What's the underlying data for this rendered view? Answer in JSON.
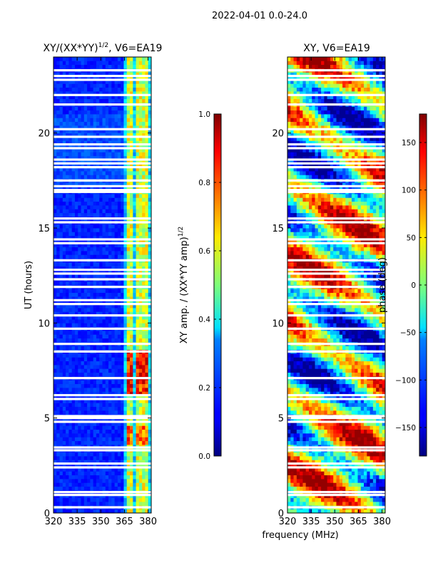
{
  "figure": {
    "suptitle": "2022-04-01 0.0-24.0",
    "xlabel": "frequency (MHz)"
  },
  "chart_data": [
    {
      "type": "heatmap",
      "title": "XY/(XX*YY)^(1/2), V6=EA19",
      "title_main": "XY/(XX*YY)",
      "title_exp": "1/2",
      "title_tail": ", V6=EA19",
      "xlabel": "",
      "ylabel": "UT (hours)",
      "xlim": [
        320,
        382
      ],
      "ylim": [
        0,
        24
      ],
      "xticks": [
        "320",
        "335",
        "350",
        "365",
        "380"
      ],
      "yticks": [
        "0",
        "5",
        "10",
        "15",
        "20"
      ],
      "xtick_values": [
        320,
        335,
        350,
        365,
        380
      ],
      "ytick_values": [
        0,
        5,
        10,
        15,
        20
      ],
      "colorbar": {
        "label": "XY amp. / (XX*YY amp)^(1/2)",
        "label_main": "XY amp. / (XX*YY amp)",
        "label_exp": "1/2",
        "range": [
          0,
          1
        ],
        "ticks": [
          "0.0",
          "0.2",
          "0.4",
          "0.6",
          "0.8",
          "1.0"
        ],
        "tick_values": [
          0,
          0.2,
          0.4,
          0.6,
          0.8,
          1.0
        ]
      }
    },
    {
      "type": "heatmap",
      "title": "XY, V6=EA19",
      "xlabel": "frequency (MHz)",
      "ylabel": "",
      "xlim": [
        320,
        382
      ],
      "ylim": [
        0,
        24
      ],
      "xticks": [
        "320",
        "335",
        "350",
        "365",
        "380"
      ],
      "yticks": [
        "0",
        "5",
        "10",
        "15",
        "20"
      ],
      "xtick_values": [
        320,
        335,
        350,
        365,
        380
      ],
      "ytick_values": [
        0,
        5,
        10,
        15,
        20
      ],
      "colorbar": {
        "label": "phase (deg)",
        "range": [
          -180,
          180
        ],
        "ticks": [
          "−150",
          "−100",
          "−50",
          "0",
          "50",
          "100",
          "150"
        ],
        "tick_values": [
          -150,
          -100,
          -50,
          0,
          50,
          100,
          150
        ]
      }
    }
  ],
  "colormap": "jet",
  "flagged_hours": [
    0.3,
    0.95,
    1.1,
    2.4,
    2.6,
    3.3,
    3.45,
    4.8,
    5.0,
    5.1,
    6.0,
    6.2,
    7.1,
    8.5,
    8.9,
    9.7,
    10.4,
    11.0,
    11.2,
    11.9,
    12.3,
    12.6,
    12.8,
    13.3,
    14.2,
    14.4,
    15.3,
    15.5,
    16.9,
    17.0,
    17.2,
    17.5,
    18.2,
    18.4,
    18.6,
    19.2,
    19.4,
    19.8,
    20.2,
    21.5,
    22.0,
    22.8,
    23.0,
    23.3
  ],
  "amp_features": {
    "bright_band_mhz": [
      363,
      382
    ],
    "stripe_mhz": [
      366,
      369,
      372,
      375,
      378
    ]
  }
}
